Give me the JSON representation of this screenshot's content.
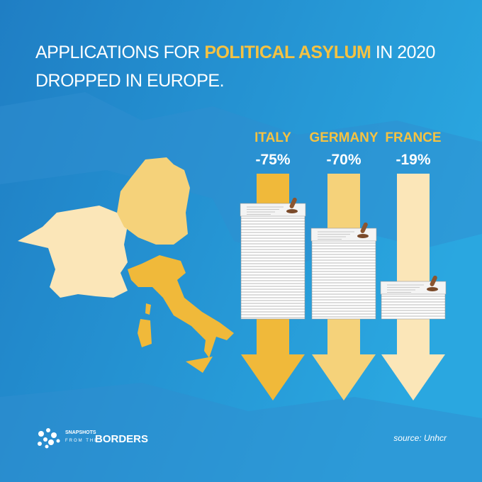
{
  "title": {
    "segments": [
      "APPLICATIONS FOR ",
      "POLITICAL ASYLUM",
      " IN 2020"
    ],
    "line2": "DROPPED IN EUROPE."
  },
  "countries": [
    {
      "name": "ITALY",
      "change": "-75%"
    },
    {
      "name": "GERMANY",
      "change": "-70%"
    },
    {
      "name": "FRANCE",
      "change": "-19%"
    }
  ],
  "logo": {
    "top": "SNAPSHOTS",
    "middle": "FROM THE",
    "brand": "BORDERS"
  },
  "source": "source: Unhcr"
}
